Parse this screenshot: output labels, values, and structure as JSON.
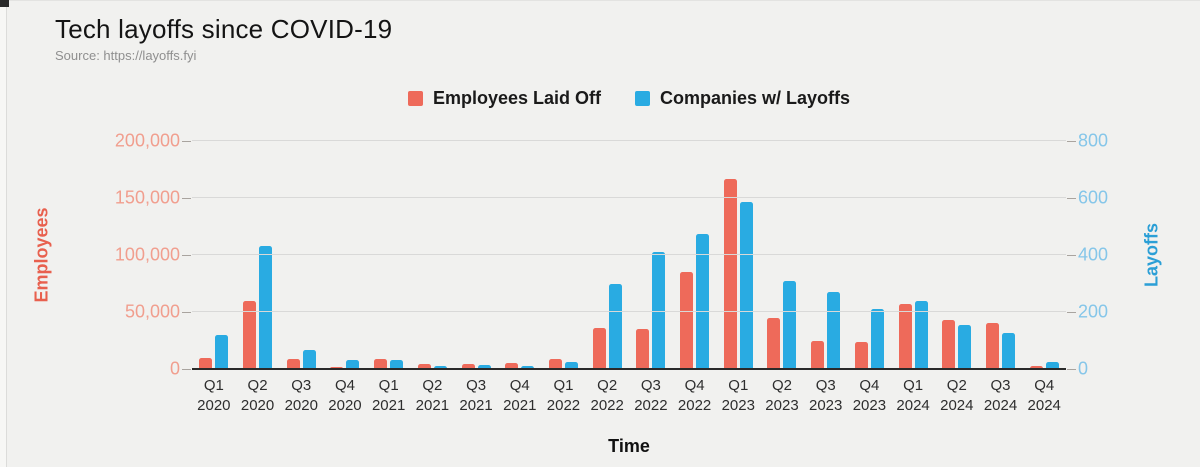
{
  "header": {
    "title": "Tech layoffs since COVID-19",
    "source": "Source: https://layoffs.fyi"
  },
  "legend": {
    "items": [
      {
        "label": "Employees Laid Off",
        "color": "#ee6a5a"
      },
      {
        "label": "Companies w/ Layoffs",
        "color": "#29abe2"
      }
    ]
  },
  "chart_data": {
    "type": "bar",
    "title": "Tech layoffs since COVID-19",
    "xlabel": "Time",
    "grid": true,
    "legend_position": "top",
    "categories": [
      "Q1 2020",
      "Q2 2020",
      "Q3 2020",
      "Q4 2020",
      "Q1 2021",
      "Q2 2021",
      "Q3 2021",
      "Q4 2021",
      "Q1 2022",
      "Q2 2022",
      "Q3 2022",
      "Q4 2022",
      "Q1 2023",
      "Q2 2023",
      "Q3 2023",
      "Q4 2023",
      "Q1 2024",
      "Q2 2024",
      "Q3 2024",
      "Q4 2024"
    ],
    "series": [
      {
        "name": "Employees Laid Off",
        "axis": "left",
        "color": "#ee6a5a",
        "values": [
          10000,
          60000,
          9000,
          2000,
          9000,
          4000,
          4000,
          5000,
          9000,
          36000,
          35000,
          85000,
          167000,
          45000,
          25000,
          24000,
          57000,
          43000,
          40000,
          3000
        ]
      },
      {
        "name": "Companies w/ Layoffs",
        "axis": "right",
        "color": "#29abe2",
        "values": [
          120,
          430,
          65,
          30,
          30,
          10,
          15,
          10,
          25,
          300,
          410,
          475,
          585,
          310,
          270,
          210,
          240,
          155,
          125,
          25
        ]
      }
    ],
    "left_axis": {
      "label": "Employees",
      "min": 0,
      "max": 200000,
      "ticks": [
        "0",
        "50,000",
        "100,000",
        "150,000",
        "200,000"
      ]
    },
    "right_axis": {
      "label": "Layoffs",
      "min": 0,
      "max": 800,
      "ticks": [
        "0",
        "200",
        "400",
        "600",
        "800"
      ]
    },
    "colors": {
      "employees": "#ee6a5a",
      "companies": "#29abe2",
      "grid": "#d9d9d8",
      "baseline": "#2a2a2a",
      "background": "#f1f1ef"
    }
  }
}
